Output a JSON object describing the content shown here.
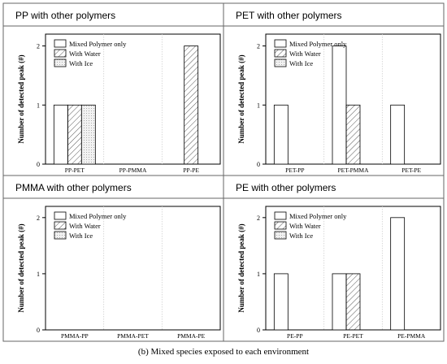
{
  "caption": "(b) Mixed species exposed to each environment",
  "legend_entries": [
    "Mixed Polymer only",
    "With Water",
    "With Ice"
  ],
  "chart_data": [
    {
      "type": "bar",
      "title": "PP with other polymers",
      "categories": [
        "PP-PET",
        "PP-PMMA",
        "PP-PE"
      ],
      "ylabel": "Number of detected peak (#)",
      "xlabel": "",
      "ylim": [
        0,
        2.2
      ],
      "yticks": [
        0,
        1,
        2
      ],
      "legend": "top-left",
      "grid": false,
      "series": [
        {
          "name": "Mixed Polymer only",
          "values": [
            1,
            0,
            0
          ]
        },
        {
          "name": "With Water",
          "values": [
            1,
            0,
            2
          ]
        },
        {
          "name": "With Ice",
          "values": [
            1,
            0,
            0
          ]
        }
      ]
    },
    {
      "type": "bar",
      "title": "PET with other polymers",
      "categories": [
        "PET-PP",
        "PET-PMMA",
        "PET-PE"
      ],
      "ylabel": "Number of detected peak (#)",
      "xlabel": "",
      "ylim": [
        0,
        2.2
      ],
      "yticks": [
        0,
        1,
        2
      ],
      "legend": "top-left",
      "grid": false,
      "series": [
        {
          "name": "Mixed Polymer only",
          "values": [
            1,
            2,
            1
          ]
        },
        {
          "name": "With Water",
          "values": [
            0,
            1,
            0
          ]
        },
        {
          "name": "With Ice",
          "values": [
            0,
            0,
            0
          ]
        }
      ]
    },
    {
      "type": "bar",
      "title": "PMMA with other polymers",
      "categories": [
        "PMMA-PP",
        "PMMA-PET",
        "PMMA-PE"
      ],
      "ylabel": "Number of detected peak (#)",
      "xlabel": "",
      "ylim": [
        0,
        2.2
      ],
      "yticks": [
        0,
        1,
        2
      ],
      "legend": "top-left",
      "grid": false,
      "series": [
        {
          "name": "Mixed Polymer only",
          "values": [
            0,
            0,
            0
          ]
        },
        {
          "name": "With Water",
          "values": [
            0,
            0,
            0
          ]
        },
        {
          "name": "With Ice",
          "values": [
            0,
            0,
            0
          ]
        }
      ]
    },
    {
      "type": "bar",
      "title": "PE with other polymers",
      "categories": [
        "PE-PP",
        "PE-PET",
        "PE-PMMA"
      ],
      "ylabel": "Number of detected peak (#)",
      "xlabel": "",
      "ylim": [
        0,
        2.2
      ],
      "yticks": [
        0,
        1,
        2
      ],
      "legend": "top-left",
      "grid": false,
      "series": [
        {
          "name": "Mixed Polymer only",
          "values": [
            1,
            1,
            2
          ]
        },
        {
          "name": "With Water",
          "values": [
            0,
            1,
            0
          ]
        },
        {
          "name": "With Ice",
          "values": [
            0,
            0,
            0
          ]
        }
      ]
    }
  ]
}
